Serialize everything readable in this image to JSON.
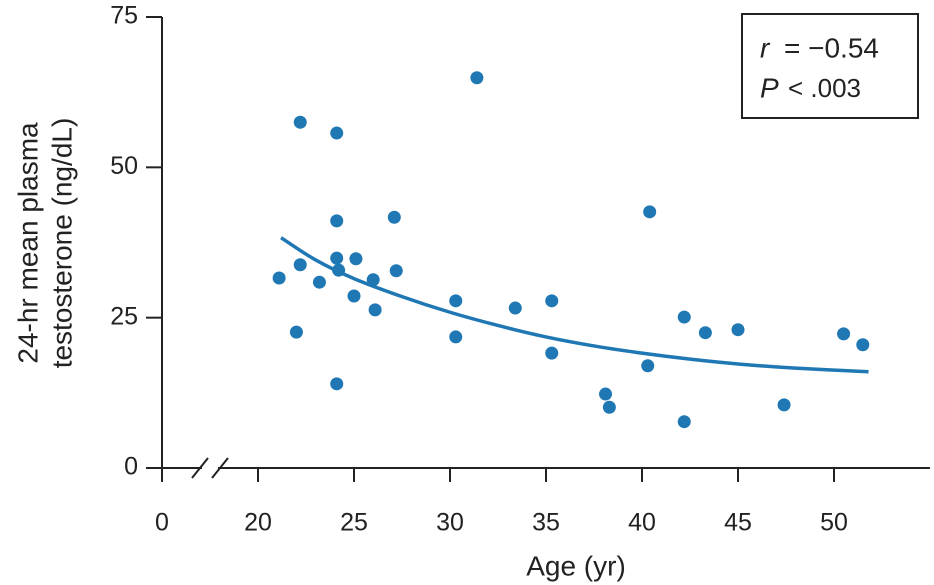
{
  "chart_data": {
    "type": "scatter",
    "x_label": "Age (yr)",
    "y_label": [
      "24-hr mean plasma",
      "testosterone (ng/dL)"
    ],
    "xlim": [
      0,
      55
    ],
    "xbreak": [
      2.5,
      17.5
    ],
    "xticks": [
      0,
      20,
      25,
      30,
      35,
      40,
      45,
      50
    ],
    "ylim": [
      0,
      75
    ],
    "yticks": [
      0,
      25,
      50,
      75
    ],
    "color": "#1f77b4",
    "x": [
      21.1,
      22.2,
      22.2,
      22.0,
      23.2,
      24.1,
      24.1,
      24.1,
      24.2,
      24.1,
      25.1,
      25.0,
      26.0,
      26.1,
      27.1,
      27.2,
      30.3,
      30.3,
      31.4,
      33.4,
      35.3,
      35.3,
      38.1,
      38.3,
      40.4,
      40.3,
      42.2,
      42.2,
      43.3,
      45.0,
      47.4,
      50.5,
      51.5
    ],
    "values": [
      31.6,
      57.5,
      33.8,
      22.6,
      30.9,
      55.7,
      41.1,
      34.9,
      32.9,
      14.0,
      34.8,
      28.6,
      31.3,
      26.3,
      41.7,
      32.8,
      27.8,
      21.8,
      64.9,
      26.6,
      27.8,
      19.1,
      12.3,
      10.1,
      42.6,
      17.0,
      25.1,
      7.7,
      22.5,
      23.0,
      10.5,
      22.3,
      20.5
    ],
    "fit": {
      "x": [
        21.2,
        23,
        25,
        27.5,
        30,
        32.5,
        35,
        37.5,
        40,
        42.5,
        45,
        48,
        51.8
      ],
      "values": [
        38.3,
        34.6,
        31.5,
        28.5,
        25.9,
        23.7,
        21.8,
        20.3,
        19.1,
        18.1,
        17.3,
        16.6,
        16.0
      ]
    },
    "annotation": [
      {
        "symbol": "r",
        "text": "= −0.54"
      },
      {
        "symbol": "P",
        "text": "< .003"
      }
    ]
  }
}
